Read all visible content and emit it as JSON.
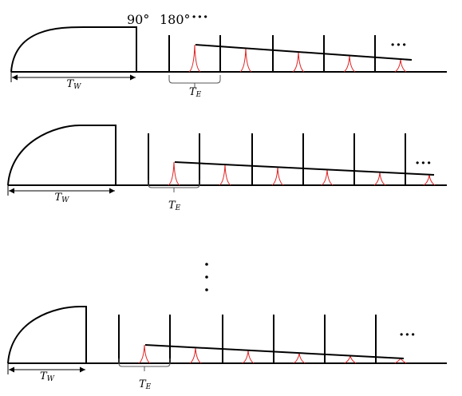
{
  "labels": {
    "flip_angle_90": "90°",
    "flip_angle_180": "180°",
    "top_ellipsis": "···",
    "wait_time_letter": "T",
    "wait_time_sub": "W",
    "echo_time_letter": "T",
    "echo_time_sub": "E",
    "train_ellipsis": "···",
    "vertical_ellipsis": "⋮"
  },
  "colors": {
    "line": "#000000",
    "echo": "#e02020"
  },
  "sequences": [
    {
      "name": "sequence-1",
      "pulses_180": 5,
      "echoes": 5,
      "show_angle_labels": true
    },
    {
      "name": "sequence-2",
      "pulses_180": 6,
      "echoes": 6,
      "show_angle_labels": false
    },
    {
      "name": "sequence-n",
      "pulses_180": 6,
      "echoes": 6,
      "show_angle_labels": false
    }
  ]
}
